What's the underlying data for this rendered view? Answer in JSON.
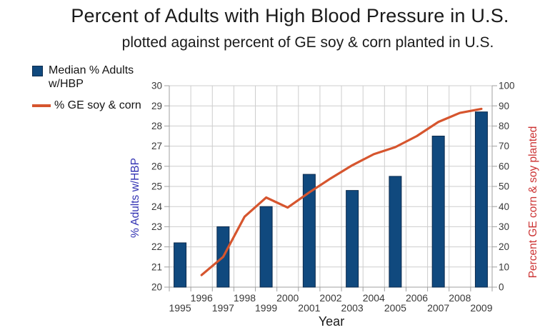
{
  "page": {
    "background": "#ffffff"
  },
  "chart": {
    "title": "Percent of Adults with High Blood Pressure in U.S.",
    "subtitle": "plotted against percent of GE soy & corn planted in U.S.",
    "legend": {
      "position": "top-left",
      "items": [
        {
          "marker": "square",
          "lines": [
            "Median % Adults",
            "w/HBP"
          ]
        },
        {
          "marker": "line",
          "lines": [
            "% GE soy & corn"
          ]
        }
      ]
    }
  },
  "chart_data": {
    "type": "bar",
    "subtype": "dual-axis bar + line",
    "title": "Percent of Adults with High Blood Pressure in U.S.",
    "subtitle": "plotted against percent of GE soy & corn planted in U.S.",
    "categories": [
      1995,
      1996,
      1997,
      1998,
      1999,
      2000,
      2001,
      2002,
      2003,
      2004,
      2005,
      2006,
      2007,
      2008,
      2009
    ],
    "xlabel": "Year",
    "left_axis": {
      "title": "% Adults w/HBP",
      "min": 20,
      "max": 30,
      "tick_step": 1,
      "text_color": "#3333b3"
    },
    "right_axis": {
      "title": "Percent GE corn & soy planted",
      "min": 0,
      "max": 100,
      "tick_step": 10,
      "text_color": "#cc3333"
    },
    "series": [
      {
        "name": "Median % Adults w/HBP",
        "type": "bar",
        "axis": "left",
        "color": "#10497e",
        "border_color": "#0c2b4d",
        "x": [
          1995,
          1997,
          1999,
          2001,
          2003,
          2005,
          2007,
          2009
        ],
        "values": [
          22.2,
          23.0,
          24.0,
          25.6,
          24.8,
          25.5,
          27.5,
          28.7
        ]
      },
      {
        "name": "% GE soy & corn",
        "type": "line",
        "axis": "right",
        "color": "#d6552e",
        "x": [
          1996,
          1997,
          1998,
          1999,
          2000,
          2001,
          2002,
          2003,
          2004,
          2005,
          2006,
          2007,
          2008,
          2009
        ],
        "values": [
          6,
          15,
          35,
          44.5,
          39.5,
          47,
          54,
          60.5,
          66,
          69.5,
          75,
          82,
          86.5,
          88.5
        ]
      }
    ],
    "grid": {
      "horizontal": true,
      "vertical": true,
      "color": "#cdcdcd"
    },
    "axis_line_color": "#a0a0a0",
    "tick_label_color": "#383838",
    "legend_position": "top-left"
  }
}
